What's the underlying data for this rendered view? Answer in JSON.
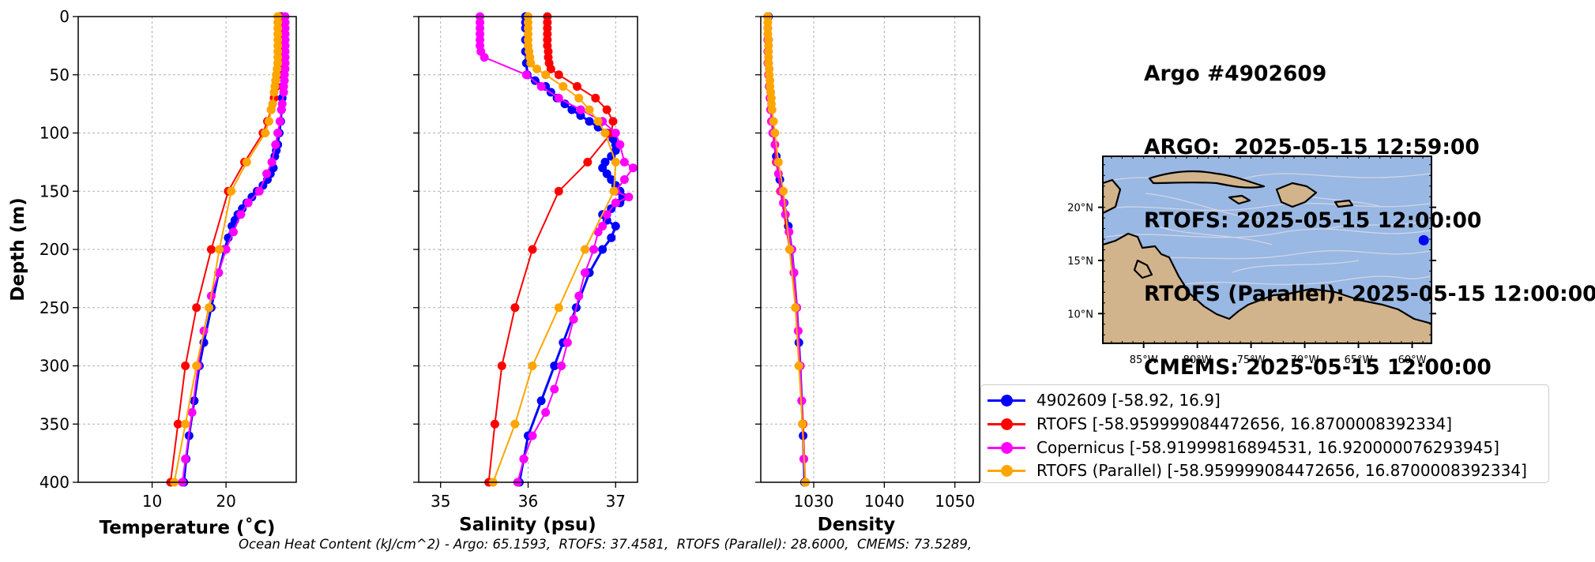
{
  "figure_title": {
    "lines": [
      "Argo #4902609",
      "ARGO:  2025-05-15 12:59:00",
      "RTOFS: 2025-05-15 12:00:00",
      "RTOFS (Parallel): 2025-05-15 12:00:00",
      "CMEMS: 2025-05-15 12:00:00"
    ]
  },
  "footer_text": "Ocean Heat Content (kJ/cm^2) - Argo: 65.1593,  RTOFS: 37.4581,  RTOFS (Parallel): 28.6000,  CMEMS: 73.5289,",
  "colors": {
    "argo": "#0000ff",
    "rtofs": "#ff0000",
    "copernicus": "#ff00ff",
    "parallel": "#ffa500",
    "ocean": "#99b8e3",
    "land": "#d2b48c"
  },
  "legend": [
    {
      "key": "argo",
      "label": "4902609 [-58.92, 16.9]"
    },
    {
      "key": "rtofs",
      "label": "RTOFS [-58.959999084472656, 16.8700008392334]"
    },
    {
      "key": "copernicus",
      "label": "Copernicus [-58.91999816894531, 16.920000076293945]"
    },
    {
      "key": "parallel",
      "label": "RTOFS (Parallel) [-58.959999084472656, 16.8700008392334]"
    }
  ],
  "map_data": {
    "lon_ticks": [
      "85°W",
      "80°W",
      "75°W",
      "70°W",
      "65°W",
      "60°W"
    ],
    "lat_ticks": [
      "20°N",
      "15°N",
      "10°N"
    ],
    "float_position": {
      "lon": -58.92,
      "lat": 16.9
    }
  },
  "chart_data": [
    {
      "type": "line",
      "xlabel": "Temperature (˚C)",
      "ylabel": "Depth (m)",
      "xlim": [
        0,
        29.5
      ],
      "ylim": [
        400,
        0
      ],
      "xticks": [
        10,
        20
      ],
      "yticks": [
        0,
        50,
        100,
        150,
        200,
        250,
        300,
        350,
        400
      ],
      "grid": true,
      "series": [
        {
          "key": "argo",
          "name": "4902609",
          "marker_size": 5.5,
          "width": 3,
          "depth": [
            0,
            5,
            10,
            20,
            30,
            40,
            50,
            60,
            70,
            80,
            90,
            100,
            110,
            115,
            120,
            130,
            135,
            140,
            145,
            150,
            155,
            160,
            165,
            170,
            175,
            180,
            190,
            200,
            220,
            250,
            280,
            300,
            330,
            360,
            380,
            400
          ],
          "value": [
            27.5,
            27.6,
            27.6,
            27.6,
            27.6,
            27.6,
            27.7,
            27.7,
            27.6,
            27.5,
            27.4,
            27.2,
            27.0,
            26.8,
            26.6,
            26.4,
            26.0,
            25.6,
            25.0,
            24.2,
            23.5,
            22.8,
            22.2,
            21.6,
            21.2,
            20.8,
            20.3,
            19.8,
            19.0,
            18.0,
            17.0,
            16.4,
            15.7,
            15.0,
            14.6,
            14.3
          ]
        },
        {
          "key": "rtofs",
          "name": "RTOFS",
          "marker_size": 5.5,
          "width": 2,
          "depth": [
            0,
            10,
            20,
            30,
            40,
            50,
            60,
            70,
            80,
            90,
            100,
            125,
            150,
            200,
            250,
            300,
            350,
            400
          ],
          "value": [
            27.2,
            27.2,
            27.2,
            27.2,
            27.2,
            27.0,
            26.8,
            26.5,
            26.1,
            25.6,
            25.0,
            22.5,
            20.3,
            18.0,
            16.0,
            14.5,
            13.5,
            12.5
          ]
        },
        {
          "key": "copernicus",
          "name": "Copernicus",
          "marker_size": 5.5,
          "width": 2,
          "depth": [
            0,
            5,
            10,
            15,
            20,
            25,
            30,
            35,
            40,
            45,
            50,
            55,
            60,
            65,
            75,
            80,
            90,
            100,
            110,
            125,
            135,
            150,
            160,
            170,
            185,
            200,
            220,
            240,
            270,
            300,
            340,
            380,
            400
          ],
          "value": [
            28.0,
            28.0,
            28.0,
            28.0,
            28.0,
            28.0,
            28.0,
            28.0,
            28.0,
            28.0,
            27.9,
            27.9,
            27.8,
            27.8,
            27.6,
            27.5,
            27.3,
            27.0,
            26.7,
            26.2,
            25.5,
            24.5,
            23.0,
            22.0,
            21.0,
            20.0,
            19.0,
            18.0,
            17.0,
            16.2,
            15.4,
            14.5,
            14.1
          ]
        },
        {
          "key": "parallel",
          "name": "RTOFS (Parallel)",
          "marker_size": 5.5,
          "width": 2,
          "depth": [
            0,
            5,
            10,
            15,
            20,
            25,
            30,
            35,
            40,
            45,
            50,
            55,
            60,
            65,
            75,
            80,
            90,
            100,
            125,
            150,
            200,
            250,
            300,
            350,
            400
          ],
          "value": [
            27.0,
            27.0,
            27.0,
            27.0,
            27.0,
            27.0,
            27.0,
            27.0,
            27.0,
            26.9,
            26.8,
            26.7,
            26.6,
            26.5,
            26.3,
            26.1,
            25.8,
            25.3,
            22.8,
            20.7,
            19.1,
            17.7,
            16.0,
            14.5,
            13.0
          ]
        }
      ]
    },
    {
      "type": "line",
      "xlabel": "Salinity (psu)",
      "xlim": [
        34.75,
        37.25
      ],
      "ylim": [
        400,
        0
      ],
      "xticks": [
        35,
        36,
        37
      ],
      "yticks": [
        0,
        50,
        100,
        150,
        200,
        250,
        300,
        350,
        400
      ],
      "grid": true,
      "series": [
        {
          "key": "argo",
          "name": "4902609",
          "marker_size": 5.5,
          "width": 3,
          "depth": [
            0,
            5,
            10,
            20,
            30,
            40,
            50,
            55,
            60,
            65,
            70,
            75,
            80,
            85,
            90,
            95,
            100,
            105,
            110,
            115,
            120,
            125,
            130,
            135,
            140,
            145,
            150,
            155,
            160,
            165,
            170,
            175,
            180,
            190,
            200,
            220,
            250,
            280,
            300,
            330,
            360,
            380,
            400
          ],
          "value": [
            35.97,
            35.97,
            35.97,
            35.97,
            35.97,
            35.98,
            35.99,
            36.08,
            36.2,
            36.26,
            36.33,
            36.42,
            36.5,
            36.6,
            36.7,
            36.8,
            36.9,
            36.97,
            37.0,
            37.0,
            36.95,
            36.88,
            36.85,
            36.9,
            36.95,
            37.0,
            37.05,
            37.08,
            37.05,
            36.95,
            36.85,
            36.9,
            37.0,
            36.95,
            36.85,
            36.7,
            36.55,
            36.4,
            36.3,
            36.15,
            36.0,
            35.95,
            35.9
          ]
        },
        {
          "key": "rtofs",
          "name": "RTOFS",
          "marker_size": 5.5,
          "width": 2,
          "depth": [
            0,
            5,
            10,
            15,
            20,
            25,
            30,
            35,
            40,
            45,
            50,
            60,
            70,
            80,
            90,
            100,
            125,
            150,
            200,
            250,
            300,
            350,
            400
          ],
          "value": [
            36.22,
            36.22,
            36.22,
            36.22,
            36.22,
            36.22,
            36.23,
            36.23,
            36.24,
            36.26,
            36.35,
            36.56,
            36.77,
            36.9,
            36.97,
            36.95,
            36.68,
            36.35,
            36.05,
            35.85,
            35.7,
            35.62,
            35.55
          ]
        },
        {
          "key": "copernicus",
          "name": "Copernicus",
          "marker_size": 5.5,
          "width": 2,
          "depth": [
            0,
            5,
            10,
            15,
            20,
            25,
            30,
            35,
            50,
            60,
            70,
            80,
            90,
            100,
            110,
            125,
            130,
            140,
            150,
            155,
            160,
            170,
            180,
            185,
            200,
            220,
            240,
            260,
            280,
            300,
            320,
            340,
            360,
            380,
            400
          ],
          "value": [
            35.45,
            35.45,
            35.45,
            35.45,
            35.45,
            35.45,
            35.46,
            35.5,
            35.98,
            36.15,
            36.35,
            36.6,
            36.85,
            37.0,
            37.05,
            37.1,
            37.2,
            37.1,
            37.0,
            37.15,
            37.0,
            36.9,
            36.85,
            36.8,
            36.75,
            36.65,
            36.58,
            36.52,
            36.45,
            36.38,
            36.3,
            36.2,
            36.05,
            35.95,
            35.88
          ]
        },
        {
          "key": "parallel",
          "name": "RTOFS (Parallel)",
          "marker_size": 5.5,
          "width": 2,
          "depth": [
            0,
            5,
            10,
            15,
            20,
            25,
            30,
            35,
            40,
            45,
            50,
            60,
            70,
            80,
            90,
            100,
            125,
            150,
            200,
            250,
            300,
            350,
            400
          ],
          "value": [
            36.0,
            36.0,
            36.0,
            36.0,
            36.0,
            36.0,
            36.01,
            36.02,
            36.03,
            36.1,
            36.2,
            36.4,
            36.58,
            36.7,
            36.8,
            36.88,
            37.0,
            36.98,
            36.65,
            36.35,
            36.05,
            35.85,
            35.6
          ]
        }
      ]
    },
    {
      "type": "line",
      "xlabel": "Density",
      "xlim": [
        1022.5,
        1053.5
      ],
      "ylim": [
        400,
        0
      ],
      "xticks": [
        1030,
        1040,
        1050
      ],
      "yticks": [
        0,
        50,
        100,
        150,
        200,
        250,
        300,
        350,
        400
      ],
      "grid": true,
      "series": [
        {
          "key": "argo",
          "name": "4902609",
          "marker_size": 5.5,
          "width": 3,
          "depth": [
            0,
            20,
            40,
            60,
            80,
            100,
            120,
            140,
            160,
            180,
            200,
            220,
            250,
            280,
            300,
            330,
            360,
            380,
            400
          ],
          "value": [
            1023.6,
            1023.6,
            1023.6,
            1023.7,
            1024.0,
            1024.3,
            1024.7,
            1025.2,
            1025.8,
            1026.4,
            1026.9,
            1027.2,
            1027.6,
            1027.9,
            1028.1,
            1028.3,
            1028.5,
            1028.6,
            1028.7
          ]
        },
        {
          "key": "rtofs",
          "name": "RTOFS",
          "marker_size": 5.5,
          "width": 2,
          "depth": [
            0,
            20,
            50,
            80,
            100,
            125,
            150,
            200,
            250,
            300,
            350,
            400
          ],
          "value": [
            1023.5,
            1023.5,
            1023.6,
            1023.9,
            1024.2,
            1024.7,
            1025.3,
            1026.6,
            1027.5,
            1028.0,
            1028.5,
            1028.8
          ]
        },
        {
          "key": "copernicus",
          "name": "Copernicus",
          "marker_size": 5.5,
          "width": 2,
          "depth": [
            0,
            10,
            20,
            30,
            40,
            50,
            60,
            70,
            80,
            90,
            100,
            110,
            125,
            135,
            150,
            160,
            170,
            185,
            200,
            220,
            250,
            270,
            300,
            330,
            350,
            380,
            400
          ],
          "value": [
            1023.5,
            1023.5,
            1023.5,
            1023.5,
            1023.5,
            1023.6,
            1023.7,
            1023.8,
            1023.9,
            1024.0,
            1024.2,
            1024.5,
            1024.8,
            1025.0,
            1025.4,
            1025.7,
            1026.0,
            1026.5,
            1026.9,
            1027.2,
            1027.6,
            1027.8,
            1028.1,
            1028.3,
            1028.4,
            1028.6,
            1028.8
          ]
        },
        {
          "key": "parallel",
          "name": "RTOFS (Parallel)",
          "marker_size": 5.5,
          "width": 2,
          "depth": [
            0,
            5,
            10,
            15,
            20,
            25,
            30,
            35,
            40,
            45,
            50,
            55,
            60,
            65,
            70,
            75,
            80,
            90,
            100,
            125,
            150,
            200,
            250,
            300,
            350,
            400
          ],
          "value": [
            1023.5,
            1023.5,
            1023.5,
            1023.5,
            1023.6,
            1023.6,
            1023.6,
            1023.6,
            1023.6,
            1023.7,
            1023.7,
            1023.8,
            1023.8,
            1023.9,
            1024.0,
            1024.0,
            1024.1,
            1024.3,
            1024.5,
            1025.0,
            1025.7,
            1026.6,
            1027.4,
            1027.9,
            1028.4,
            1028.8
          ]
        }
      ]
    }
  ]
}
